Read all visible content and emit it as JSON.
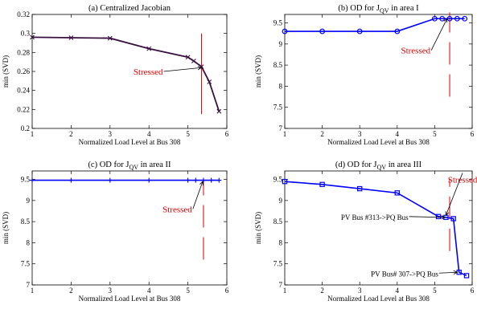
{
  "chart_data": [
    {
      "type": "line",
      "title": "(a) Centralized Jacobian",
      "xlabel": "Normalized Load Level at Bus 308",
      "ylabel": "min (SVD)",
      "xlim": [
        1,
        6
      ],
      "ylim": [
        0.2,
        0.32
      ],
      "xticks": [
        "1",
        "2",
        "3",
        "4",
        "5",
        "6"
      ],
      "yticks": [
        "0.2",
        "0.22",
        "0.24",
        "0.26",
        "0.28",
        "0.3",
        "0.32"
      ],
      "grid": false,
      "series": [
        {
          "color": "#3a1040",
          "marker": "x",
          "x": [
            1,
            2,
            3,
            4,
            5,
            5.15,
            5.35,
            5.55,
            5.8
          ],
          "y": [
            0.296,
            0.2955,
            0.295,
            0.284,
            0.275,
            0.271,
            0.265,
            0.249,
            0.218
          ]
        }
      ],
      "annotations": [
        {
          "text": "Stressed",
          "color": "#e00000",
          "text_x": 3.6,
          "text_y": 0.26,
          "arrow_to_x": 5.35,
          "arrow_to_y": 0.264
        }
      ],
      "marker_line": {
        "x": 5.35,
        "y_from": 0.215,
        "y_to": 0.3,
        "color": "#e00000",
        "style": "solid"
      }
    },
    {
      "type": "line",
      "title_main": "(b) OD for J",
      "title_sub": "QV",
      "title_suffix": " in area I",
      "xlabel": "Normalized Load Level at Bus 308",
      "ylabel": "min (SVD)",
      "xlim": [
        1,
        6
      ],
      "ylim": [
        7,
        9.7
      ],
      "xticks": [
        "1",
        "2",
        "3",
        "4",
        "5",
        "6"
      ],
      "yticks": [
        "7",
        "7.5",
        "8",
        "8.5",
        "9",
        "9.5"
      ],
      "grid": false,
      "series": [
        {
          "color": "#0000ff",
          "marker": "o",
          "x": [
            1,
            2,
            3,
            4,
            5,
            5.2,
            5.4,
            5.6,
            5.8
          ],
          "y": [
            9.3,
            9.3,
            9.3,
            9.3,
            9.6,
            9.6,
            9.6,
            9.6,
            9.6
          ]
        }
      ],
      "annotations": [
        {
          "text": "Stressed",
          "color": "#e00000",
          "text_x": 4.1,
          "text_y": 8.85,
          "arrow_to_x": 5.33,
          "arrow_to_y": 9.6
        }
      ],
      "marker_line": {
        "x": 5.4,
        "y_from": 7.75,
        "y_to": 9.75,
        "color": "#e00000",
        "style": "dashed"
      }
    },
    {
      "type": "line",
      "title_main": "(c) OD for J",
      "title_sub": "QV",
      "title_suffix": " in area II",
      "xlabel": "Normalized Load Level at Bus 308",
      "ylabel": "min (SVD)",
      "xlim": [
        1,
        6
      ],
      "ylim": [
        7,
        9.7
      ],
      "xticks": [
        "1",
        "2",
        "3",
        "4",
        "5",
        "6"
      ],
      "yticks": [
        "7",
        "7.5",
        "8",
        "8.5",
        "9",
        "9.5"
      ],
      "grid": false,
      "series": [
        {
          "color": "#0000ff",
          "marker": "+",
          "x": [
            1,
            2,
            3,
            4,
            5,
            5.2,
            5.4,
            5.6,
            5.8
          ],
          "y": [
            9.48,
            9.48,
            9.48,
            9.48,
            9.48,
            9.48,
            9.48,
            9.48,
            9.48
          ]
        }
      ],
      "annotations": [
        {
          "text": "Stressed",
          "color": "#e00000",
          "text_x": 4.35,
          "text_y": 8.8,
          "arrow_to_x": 5.38,
          "arrow_to_y": 9.45
        }
      ],
      "marker_line": {
        "x": 5.4,
        "y_from": 7.6,
        "y_to": 9.5,
        "color": "#e00000",
        "style": "dashed"
      }
    },
    {
      "type": "line",
      "title_main": "(d) OD for J",
      "title_sub": "QV",
      "title_suffix": " in area III",
      "xlabel": "Normalized Load Level at Bus 308",
      "ylabel": "min (SVD)",
      "xlim": [
        1,
        6
      ],
      "ylim": [
        7,
        9.7
      ],
      "xticks": [
        "1",
        "2",
        "3",
        "4",
        "5",
        "6"
      ],
      "yticks": [
        "7",
        "7.5",
        "8",
        "8.5",
        "9",
        "9.5"
      ],
      "grid": false,
      "series": [
        {
          "color": "#0000ff",
          "marker": "s",
          "x": [
            1,
            2,
            3,
            4,
            5.1,
            5.3,
            5.5,
            5.65,
            5.85
          ],
          "y": [
            9.45,
            9.38,
            9.28,
            9.18,
            8.62,
            8.6,
            8.57,
            7.3,
            7.22
          ]
        }
      ],
      "annotations": [
        {
          "text": "Stressed",
          "color": "#e00000",
          "text_x": 5.35,
          "text_y": 9.5,
          "arrow_to_x": 5.3,
          "arrow_to_y": 8.65
        },
        {
          "text": "PV Bus #313->PQ Bus",
          "color": "#000000",
          "text_x": 2.5,
          "text_y": 8.62,
          "arrow_to_x": 5.28,
          "arrow_to_y": 8.6
        },
        {
          "text": "PV Bus# 307->PQ Bus",
          "color": "#000000",
          "text_x": 3.3,
          "text_y": 7.28,
          "arrow_to_x": 5.6,
          "arrow_to_y": 7.3
        }
      ],
      "marker_line": {
        "x": 5.4,
        "y_from": 7.8,
        "y_to": 9.5,
        "color": "#e00000",
        "style": "dashed"
      }
    }
  ]
}
